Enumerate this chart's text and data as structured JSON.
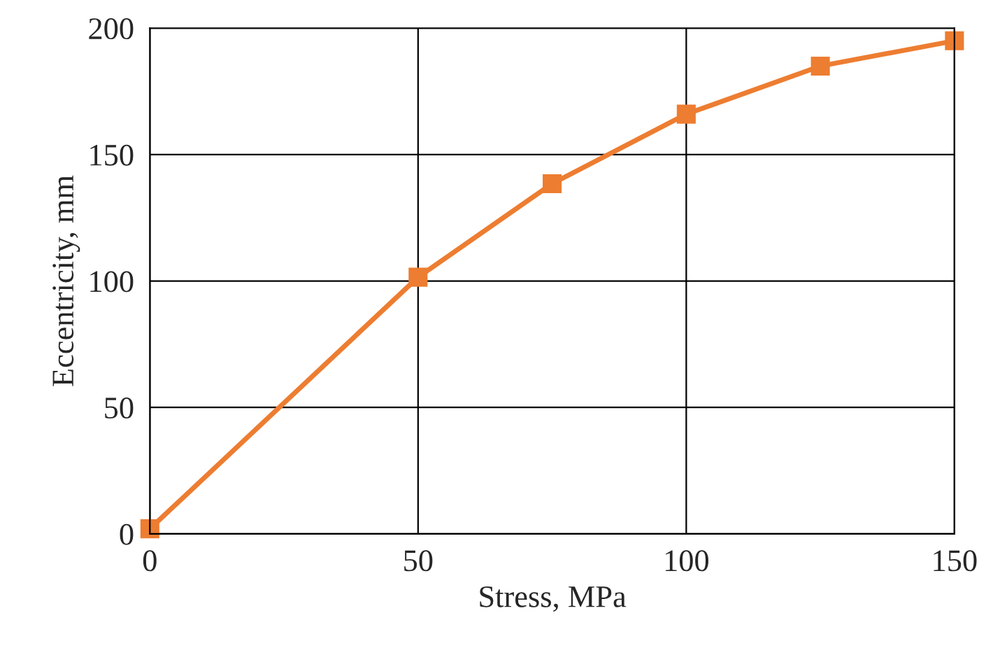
{
  "chart_data": {
    "type": "line",
    "xlabel": "Stress, MPa",
    "ylabel": "Eccentricity, mm",
    "x": [
      0,
      50,
      75,
      100,
      125,
      150
    ],
    "series": [
      {
        "color": "#ed7d31",
        "values": [
          2,
          101.5,
          138.5,
          166,
          185,
          195
        ]
      }
    ],
    "xlim": [
      0,
      150
    ],
    "xticks": [
      0,
      50,
      100,
      150
    ],
    "ylim": [
      0,
      200
    ],
    "yticks": [
      0,
      50,
      100,
      150,
      200
    ],
    "grid": true,
    "marker": "square",
    "line_style": "solid",
    "legend": false
  }
}
